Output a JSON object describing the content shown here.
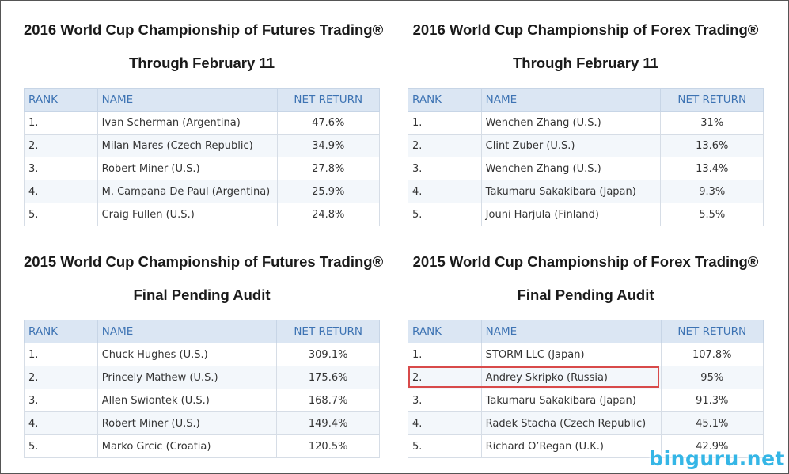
{
  "headers": {
    "rank": "RANK",
    "name": "NAME",
    "net_return": "NET RETURN"
  },
  "panels": [
    {
      "title": "2016 World Cup Championship of Futures Trading®",
      "subtitle": "Through February 11",
      "rows": [
        {
          "rank": "1.",
          "name": "Ivan Scherman (Argentina)",
          "ret": "47.6%"
        },
        {
          "rank": "2.",
          "name": "Milan Mares (Czech Republic)",
          "ret": "34.9%"
        },
        {
          "rank": "3.",
          "name": "Robert Miner (U.S.)",
          "ret": "27.8%"
        },
        {
          "rank": "4.",
          "name": "M. Campana De Paul (Argentina)",
          "ret": "25.9%"
        },
        {
          "rank": "5.",
          "name": "Craig Fullen (U.S.)",
          "ret": "24.8%"
        }
      ]
    },
    {
      "title": "2016 World Cup Championship of Forex Trading®",
      "subtitle": "Through February 11",
      "rows": [
        {
          "rank": "1.",
          "name": "Wenchen Zhang (U.S.)",
          "ret": "31%"
        },
        {
          "rank": "2.",
          "name": "Clint Zuber (U.S.)",
          "ret": "13.6%"
        },
        {
          "rank": "3.",
          "name": "Wenchen Zhang (U.S.)",
          "ret": "13.4%"
        },
        {
          "rank": "4.",
          "name": "Takumaru Sakakibara (Japan)",
          "ret": "9.3%"
        },
        {
          "rank": "5.",
          "name": "Jouni Harjula (Finland)",
          "ret": "5.5%"
        }
      ]
    },
    {
      "title": "2015 World Cup Championship of Futures Trading®",
      "subtitle": "Final Pending Audit",
      "rows": [
        {
          "rank": "1.",
          "name": "Chuck Hughes (U.S.)",
          "ret": "309.1%"
        },
        {
          "rank": "2.",
          "name": "Princely Mathew (U.S.)",
          "ret": "175.6%"
        },
        {
          "rank": "3.",
          "name": "Allen Swiontek (U.S.)",
          "ret": "168.7%"
        },
        {
          "rank": "4.",
          "name": "Robert Miner (U.S.)",
          "ret": "149.4%"
        },
        {
          "rank": "5.",
          "name": "Marko Grcic (Croatia)",
          "ret": "120.5%"
        }
      ]
    },
    {
      "title": "2015 World Cup Championship of Forex Trading®",
      "subtitle": "Final Pending Audit",
      "rows": [
        {
          "rank": "1.",
          "name": "STORM LLC (Japan)",
          "ret": "107.8%"
        },
        {
          "rank": "2.",
          "name": "Andrey Skripko (Russia)",
          "ret": "95%"
        },
        {
          "rank": "3.",
          "name": "Takumaru Sakakibara (Japan)",
          "ret": "91.3%"
        },
        {
          "rank": "4.",
          "name": "Radek Stacha (Czech Republic)",
          "ret": "45.1%"
        },
        {
          "rank": "5.",
          "name": "Richard O’Regan (U.K.)",
          "ret": "42.9%"
        }
      ]
    }
  ],
  "highlight_color": "#d84a4a",
  "watermark": "binguru.net"
}
